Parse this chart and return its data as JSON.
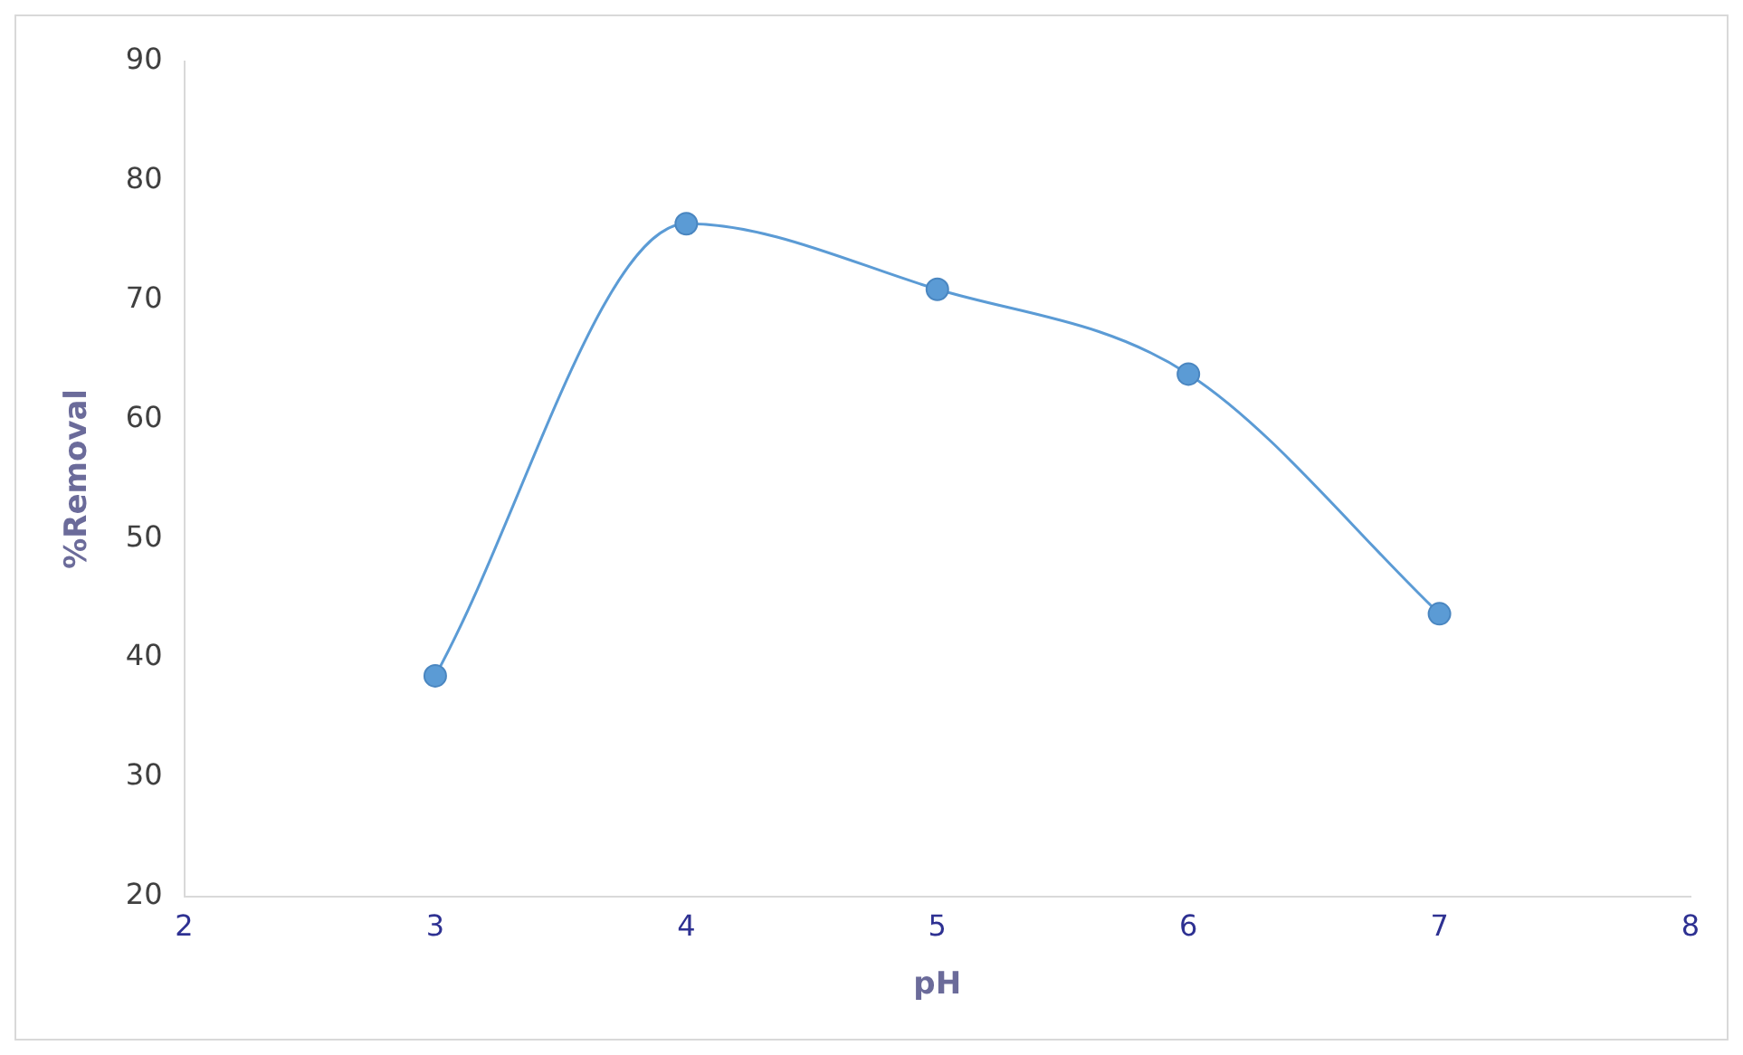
{
  "chart_data": {
    "type": "line",
    "xlabel": "pH",
    "ylabel": "%Removal",
    "x": [
      3,
      4,
      5,
      6,
      7
    ],
    "series": [
      {
        "color": "#5b9bd5",
        "values": [
          38.5,
          76.4,
          70.9,
          63.8,
          43.7
        ]
      }
    ],
    "xlim": [
      2,
      8
    ],
    "xticks": [
      2,
      3,
      4,
      5,
      6,
      7,
      8
    ],
    "ylim": [
      20,
      90
    ],
    "yticks": [
      20,
      30,
      40,
      50,
      60,
      70,
      80,
      90
    ],
    "grid": false,
    "legend": false,
    "marker": "circle",
    "line_style": "solid"
  }
}
